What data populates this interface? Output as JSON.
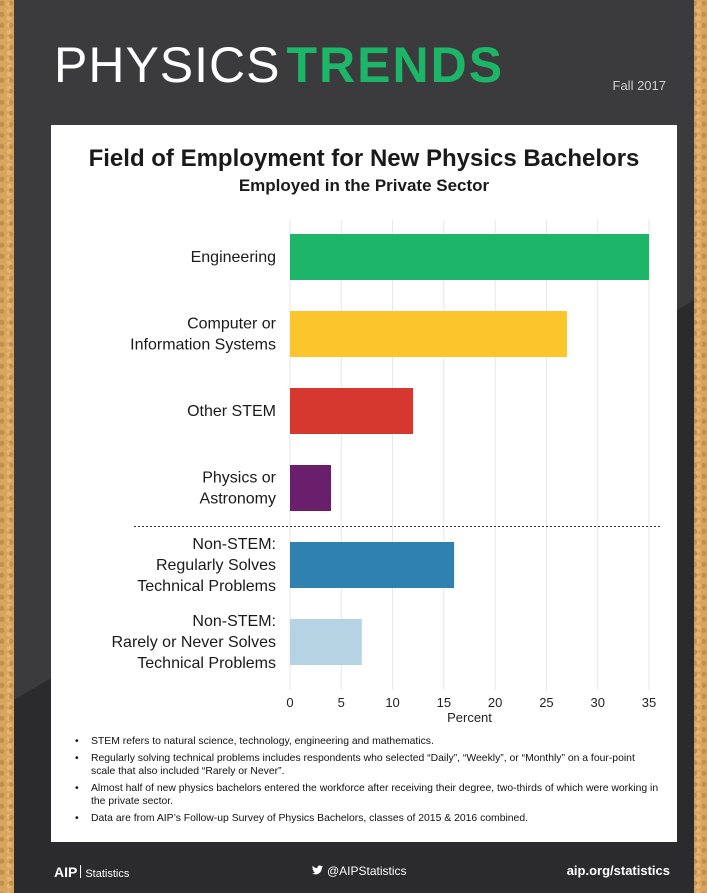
{
  "header": {
    "title_light": "PHYSICS",
    "title_bold": "TRENDS",
    "season": "Fall 2017"
  },
  "colors": {
    "poster_bg": "#3b3b3d",
    "poster_diag": "#2b2b2d",
    "title_green": "#1db567"
  },
  "chart_data": {
    "type": "bar",
    "orientation": "horizontal",
    "title": "Field of Employment for New Physics Bachelors",
    "subtitle": "Employed in the Private Sector",
    "xlabel": "Percent",
    "xlim": [
      0,
      35
    ],
    "xticks": [
      0,
      5,
      10,
      15,
      20,
      25,
      30,
      35
    ],
    "grid": true,
    "categories": [
      [
        "Engineering"
      ],
      [
        "Computer or",
        "Information Systems"
      ],
      [
        "Other STEM"
      ],
      [
        "Physics or",
        "Astronomy"
      ],
      [
        "Non-STEM:",
        "Regularly Solves",
        "Technical Problems"
      ],
      [
        "Non-STEM:",
        "Rarely or Never Solves",
        "Technical Problems"
      ]
    ],
    "values": [
      35,
      27,
      12,
      4,
      16,
      7
    ],
    "colors": [
      "#1db567",
      "#fcc52c",
      "#d6372f",
      "#6a1f6c",
      "#2f81b0",
      "#b6d3e4"
    ],
    "separator_after_index": 3
  },
  "notes": [
    "STEM refers to natural science, technology, engineering and mathematics.",
    "Regularly solving technical problems includes respondents who selected “Daily”, “Weekly”, or “Monthly” on a four-point scale that also included “Rarely or Never”.",
    "Almost half of new physics bachelors entered the workforce after receiving their degree, two-thirds of which were working in the private sector.",
    "Data are from AIP’s Follow-up Survey of Physics Bachelors, classes of 2015 & 2016 combined."
  ],
  "footer": {
    "aip": "AIP",
    "aip_sub": "Statistics",
    "twitter_icon": "twitter-bird-icon",
    "twitter": "@AIPStatistics",
    "site": "aip.org/statistics"
  }
}
